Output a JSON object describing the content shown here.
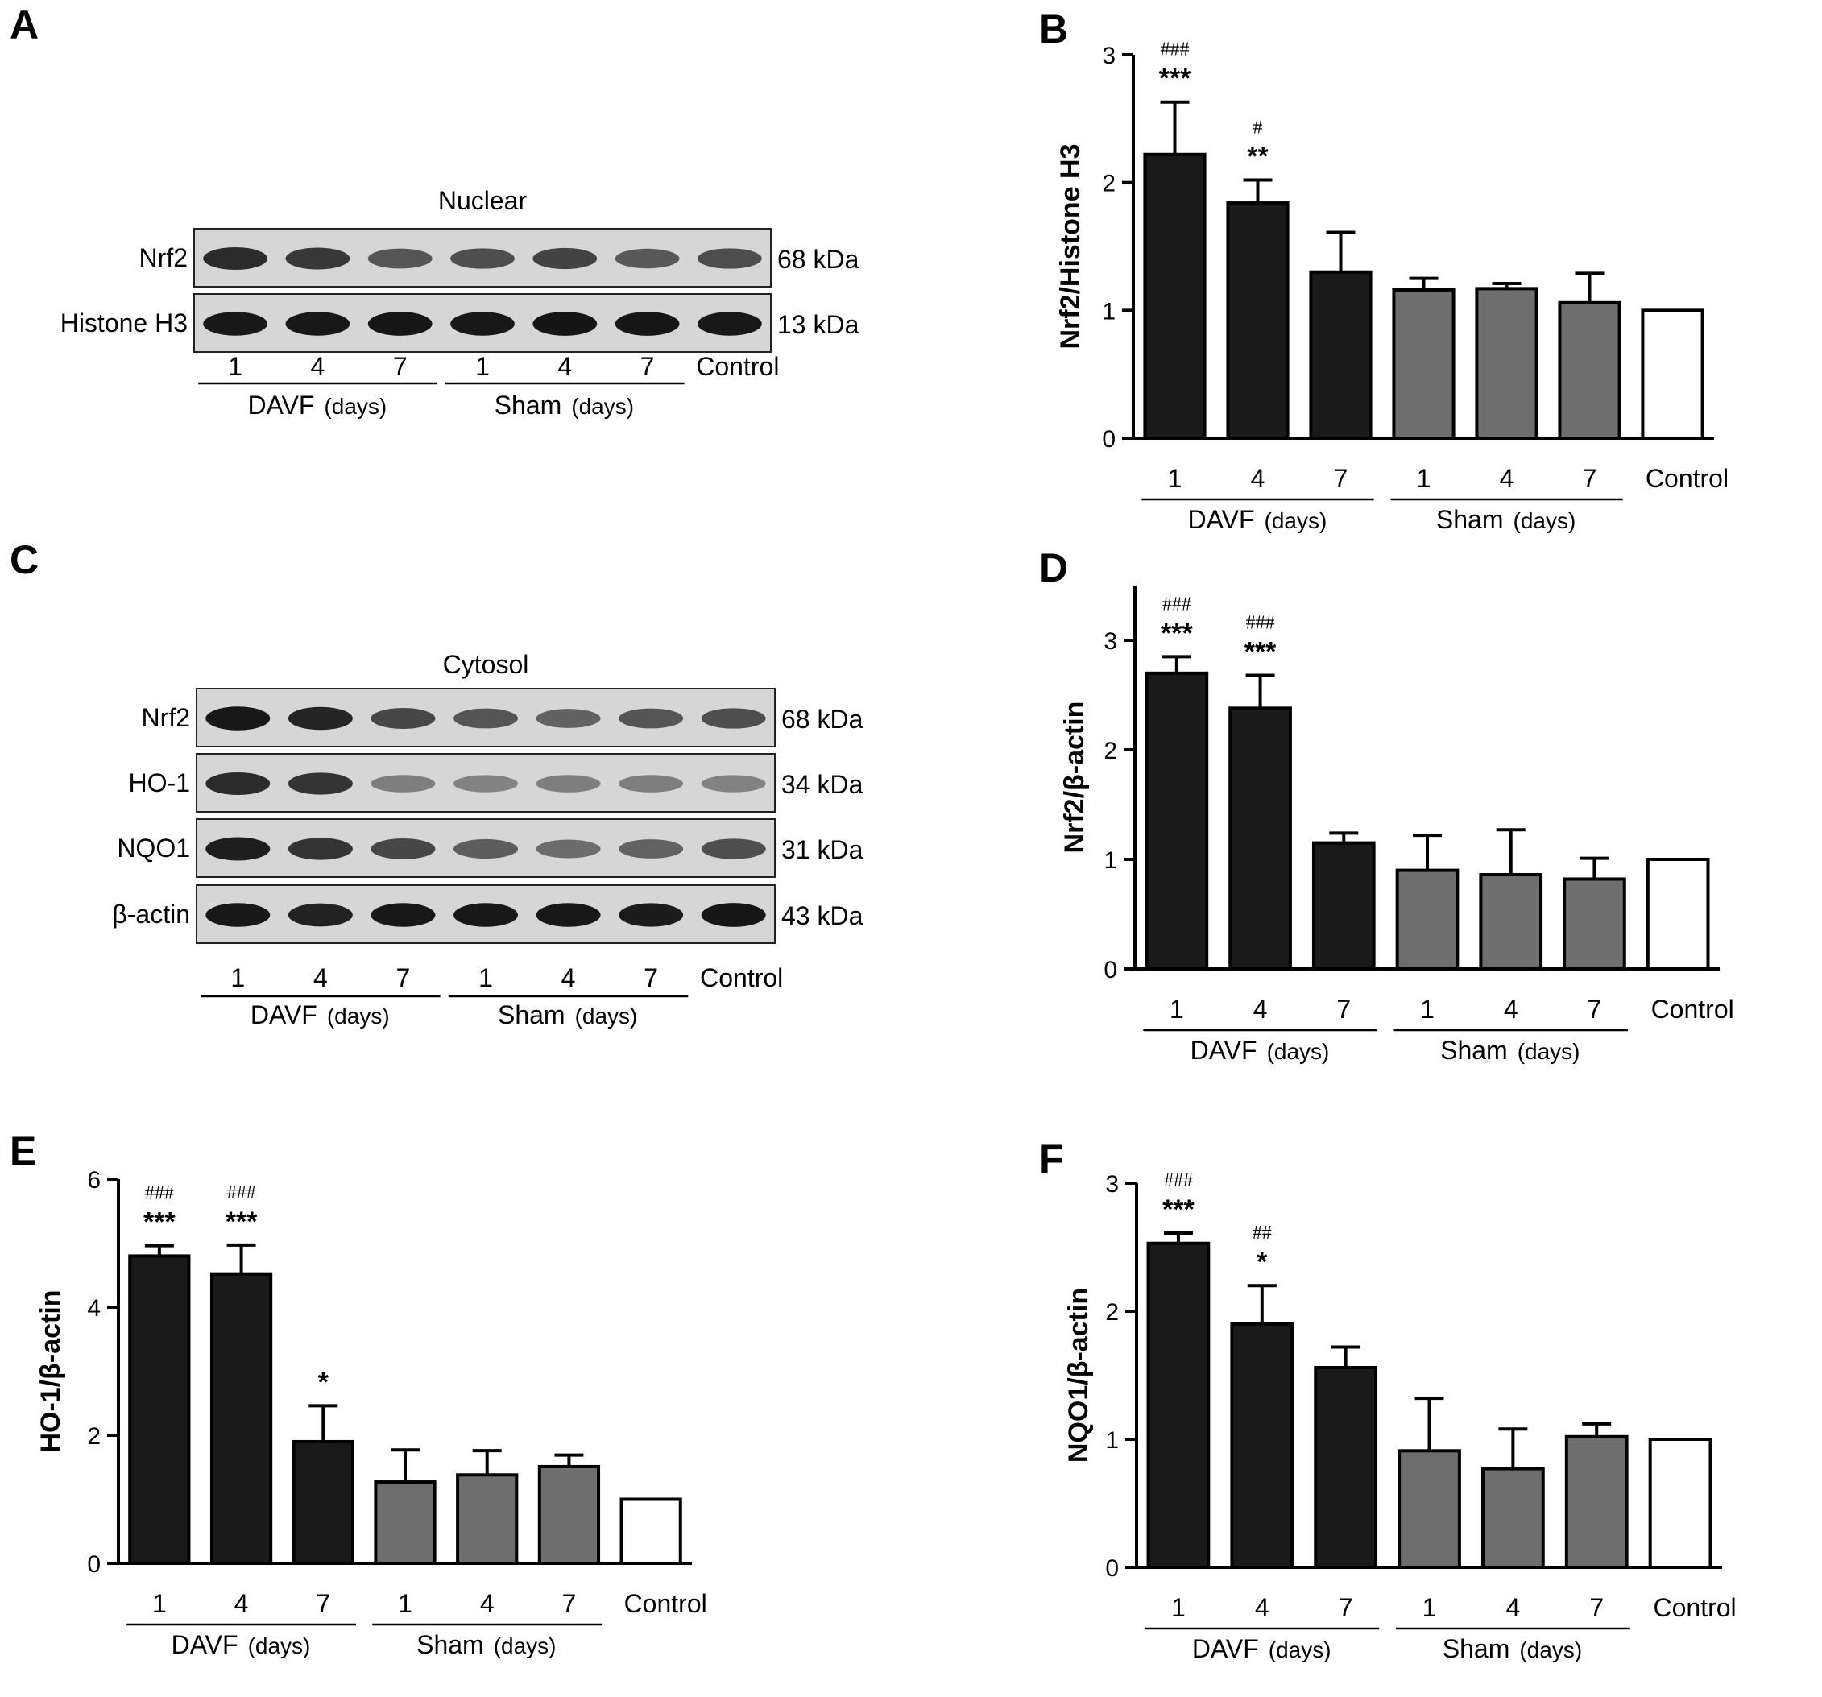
{
  "figure": {
    "panels": {
      "A": {
        "letter": "A",
        "title": "Nuclear",
        "rows": [
          {
            "label": "Nrf2",
            "kda": "68 kDa",
            "intensity": [
              0.85,
              0.78,
              0.62,
              0.66,
              0.72,
              0.6,
              0.66
            ]
          },
          {
            "label": "Histone H3",
            "kda": "13 kDa",
            "intensity": [
              0.95,
              0.95,
              0.96,
              0.95,
              0.97,
              0.96,
              0.95
            ]
          }
        ],
        "lanes": [
          "1",
          "4",
          "7",
          "1",
          "4",
          "7",
          "Control"
        ],
        "groups": [
          {
            "name": "DAVF",
            "unit": "(days)"
          },
          {
            "name": "Sham",
            "unit": "(days)"
          }
        ]
      },
      "C": {
        "letter": "C",
        "title": "Cytosol",
        "rows": [
          {
            "label": "Nrf2",
            "kda": "68 kDa",
            "intensity": [
              0.95,
              0.88,
              0.7,
              0.62,
              0.55,
              0.62,
              0.66
            ]
          },
          {
            "label": "HO-1",
            "kda": "34 kDa",
            "intensity": [
              0.85,
              0.8,
              0.4,
              0.38,
              0.4,
              0.4,
              0.38
            ]
          },
          {
            "label": "NQO1",
            "kda": "31 kDa",
            "intensity": [
              0.92,
              0.8,
              0.7,
              0.58,
              0.5,
              0.55,
              0.66
            ]
          },
          {
            "label": "β-actin",
            "kda": "43 kDa",
            "intensity": [
              0.95,
              0.9,
              0.95,
              0.95,
              0.95,
              0.93,
              0.96
            ]
          }
        ],
        "lanes": [
          "1",
          "4",
          "7",
          "1",
          "4",
          "7",
          "Control"
        ],
        "groups": [
          {
            "name": "DAVF",
            "unit": "(days)"
          },
          {
            "name": "Sham",
            "unit": "(days)"
          }
        ]
      }
    }
  },
  "chart_data": [
    {
      "panel": "B",
      "type": "bar",
      "ylabel": "Nrf2/Histone H3",
      "ylim": [
        0,
        3
      ],
      "yticks": [
        "0",
        "1",
        "2",
        "3"
      ],
      "categories": [
        "1",
        "4",
        "7",
        "1",
        "4",
        "7",
        "Control"
      ],
      "groups": [
        {
          "name": "DAVF",
          "unit": "(days)"
        },
        {
          "name": "Sham",
          "unit": "(days)"
        }
      ],
      "values": [
        2.22,
        1.84,
        1.3,
        1.16,
        1.17,
        1.06,
        1.0
      ],
      "errors": [
        0.41,
        0.18,
        0.31,
        0.09,
        0.04,
        0.23,
        0
      ],
      "stars": [
        "***",
        "**",
        "",
        "",
        "",
        "",
        ""
      ],
      "hashes": [
        "###",
        "#",
        "",
        "",
        "",
        "",
        ""
      ]
    },
    {
      "panel": "D",
      "type": "bar",
      "ylabel": "Nrf2/β-actin",
      "ylim": [
        0,
        3.5
      ],
      "yticks": [
        "0",
        "1",
        "2",
        "3"
      ],
      "categories": [
        "1",
        "4",
        "7",
        "1",
        "4",
        "7",
        "Control"
      ],
      "groups": [
        {
          "name": "DAVF",
          "unit": "(days)"
        },
        {
          "name": "Sham",
          "unit": "(days)"
        }
      ],
      "values": [
        2.7,
        2.38,
        1.15,
        0.9,
        0.86,
        0.82,
        1.0
      ],
      "errors": [
        0.15,
        0.3,
        0.09,
        0.32,
        0.41,
        0.19,
        0
      ],
      "stars": [
        "***",
        "***",
        "",
        "",
        "",
        "",
        ""
      ],
      "hashes": [
        "###",
        "###",
        "",
        "",
        "",
        "",
        ""
      ]
    },
    {
      "panel": "E",
      "type": "bar",
      "ylabel": "HO-1/β-actin",
      "ylim": [
        0,
        6
      ],
      "yticks": [
        "0",
        "2",
        "4",
        "6"
      ],
      "categories": [
        "1",
        "4",
        "7",
        "1",
        "4",
        "7",
        "Control"
      ],
      "groups": [
        {
          "name": "DAVF",
          "unit": "(days)"
        },
        {
          "name": "Sham",
          "unit": "(days)"
        }
      ],
      "values": [
        4.8,
        4.52,
        1.9,
        1.27,
        1.38,
        1.51,
        1.0
      ],
      "errors": [
        0.16,
        0.45,
        0.56,
        0.5,
        0.38,
        0.18,
        0
      ],
      "stars": [
        "***",
        "***",
        "*",
        "",
        "",
        "",
        ""
      ],
      "hashes": [
        "###",
        "###",
        "",
        "",
        "",
        "",
        ""
      ]
    },
    {
      "panel": "F",
      "type": "bar",
      "ylabel": "NQO1/β-actin",
      "ylim": [
        0,
        3
      ],
      "yticks": [
        "0",
        "1",
        "2",
        "3"
      ],
      "categories": [
        "1",
        "4",
        "7",
        "1",
        "4",
        "7",
        "Control"
      ],
      "groups": [
        {
          "name": "DAVF",
          "unit": "(days)"
        },
        {
          "name": "Sham",
          "unit": "(days)"
        }
      ],
      "values": [
        2.53,
        1.9,
        1.56,
        0.91,
        0.77,
        1.02,
        1.0
      ],
      "errors": [
        0.08,
        0.3,
        0.16,
        0.41,
        0.31,
        0.1,
        0
      ],
      "stars": [
        "***",
        "*",
        "",
        "",
        "",
        "",
        ""
      ],
      "hashes": [
        "###",
        "##",
        "",
        "",
        "",
        "",
        ""
      ]
    }
  ],
  "colors": {
    "davf": "#1a1a1a",
    "sham": "#6e6e6e",
    "control": "#ffffff",
    "stroke": "#000000"
  }
}
